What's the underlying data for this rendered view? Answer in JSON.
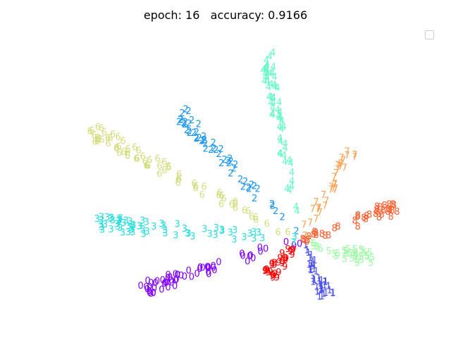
{
  "chart_data": {
    "type": "scatter",
    "title": "epoch: 16   accuracy: 0.9166",
    "xlabel": "",
    "ylabel": "",
    "axes_visible": false,
    "legend": {
      "visible": true,
      "placement": "top-right",
      "entries": []
    },
    "marker": "digit-label",
    "xlim": [
      -0.8,
      0.35
    ],
    "ylim": [
      -0.18,
      0.6
    ],
    "center": [
      0,
      0
    ],
    "classes": [
      {
        "label": "0",
        "color": "#8000ff",
        "tip": [
          -0.52,
          -0.15
        ],
        "points": 60
      },
      {
        "label": "1",
        "color": "#4b50f2",
        "tip": [
          0.09,
          -0.17
        ],
        "points": 40
      },
      {
        "label": "2",
        "color": "#1996f3",
        "tip": [
          -0.39,
          0.38
        ],
        "points": 55
      },
      {
        "label": "3",
        "color": "#2adddd",
        "tip": [
          -0.67,
          0.05
        ],
        "points": 65
      },
      {
        "label": "4",
        "color": "#62fbc4",
        "tip": [
          -0.11,
          0.56
        ],
        "points": 60
      },
      {
        "label": "5",
        "color": "#9cfba4",
        "tip": [
          0.24,
          -0.06
        ],
        "points": 35
      },
      {
        "label": "6",
        "color": "#d4dd80",
        "tip": [
          -0.69,
          0.33
        ],
        "points": 70
      },
      {
        "label": "7",
        "color": "#ffa256",
        "tip": [
          0.17,
          0.27
        ],
        "points": 35
      },
      {
        "label": "8",
        "color": "#ff5f30",
        "tip": [
          0.32,
          0.1
        ],
        "points": 40
      },
      {
        "label": "9",
        "color": "#ff0000",
        "tip": [
          -0.1,
          -0.11
        ],
        "points": 30
      }
    ]
  }
}
